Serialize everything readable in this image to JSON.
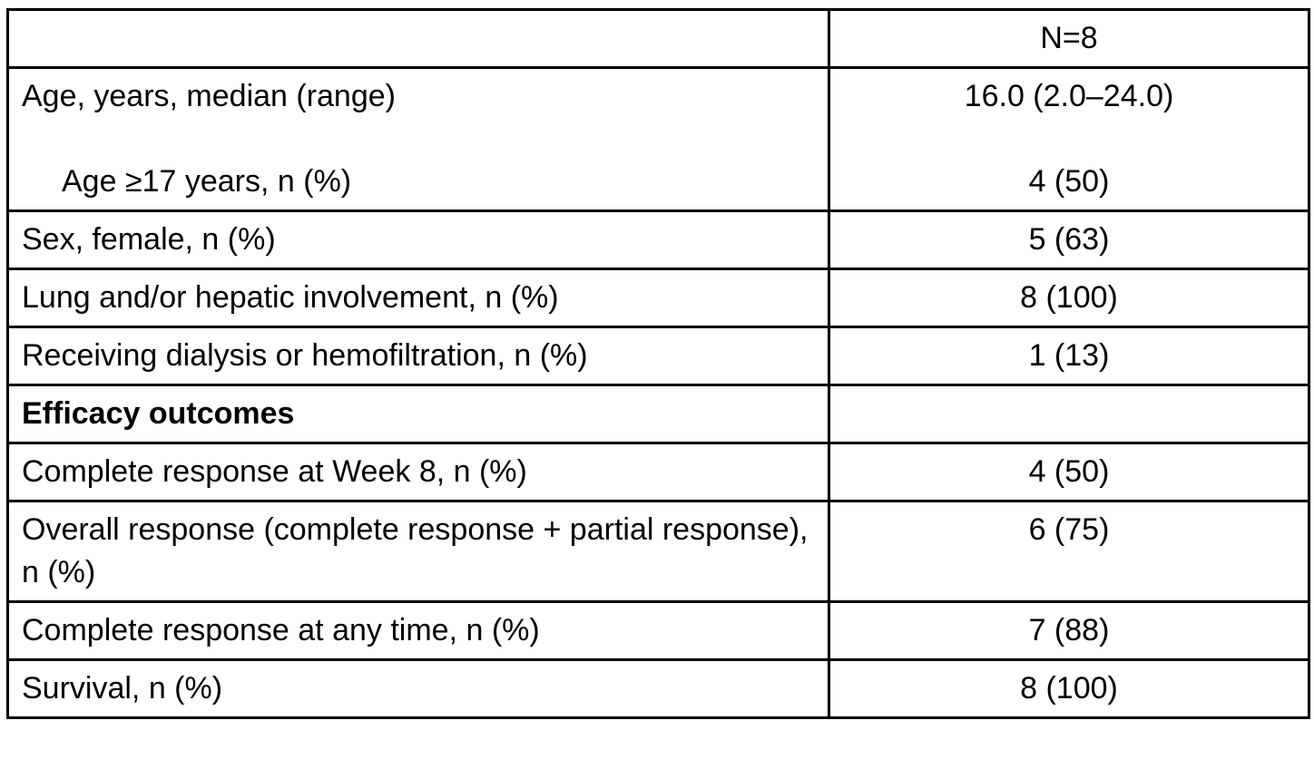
{
  "table": {
    "header": {
      "empty_label": "",
      "n_label": "N=8"
    },
    "rows": {
      "age": {
        "line1_label": "Age, years, median (range)",
        "line1_value": "16.0 (2.0–24.0)",
        "line2_label": "Age ≥17 years, n (%)",
        "line2_value": "4 (50)"
      },
      "sex": {
        "label": "Sex, female, n (%)",
        "value": "5 (63)"
      },
      "lung": {
        "label": "Lung and/or hepatic involvement, n (%)",
        "value": "8 (100)"
      },
      "dialysis": {
        "label": "Receiving dialysis or hemofiltration, n (%)",
        "value": "1 (13)"
      },
      "efficacy": {
        "label": "Efficacy outcomes",
        "value": ""
      },
      "cr_week8": {
        "label": "Complete response at Week 8, n (%)",
        "value": "4 (50)"
      },
      "overall": {
        "label": "Overall response (complete response + partial response), n (%)",
        "value": "6 (75)"
      },
      "cr_anytime": {
        "label": "Complete response at any time, n (%)",
        "value": "7 (88)"
      },
      "survival": {
        "label": "Survival, n (%)",
        "value": "8 (100)"
      }
    }
  }
}
